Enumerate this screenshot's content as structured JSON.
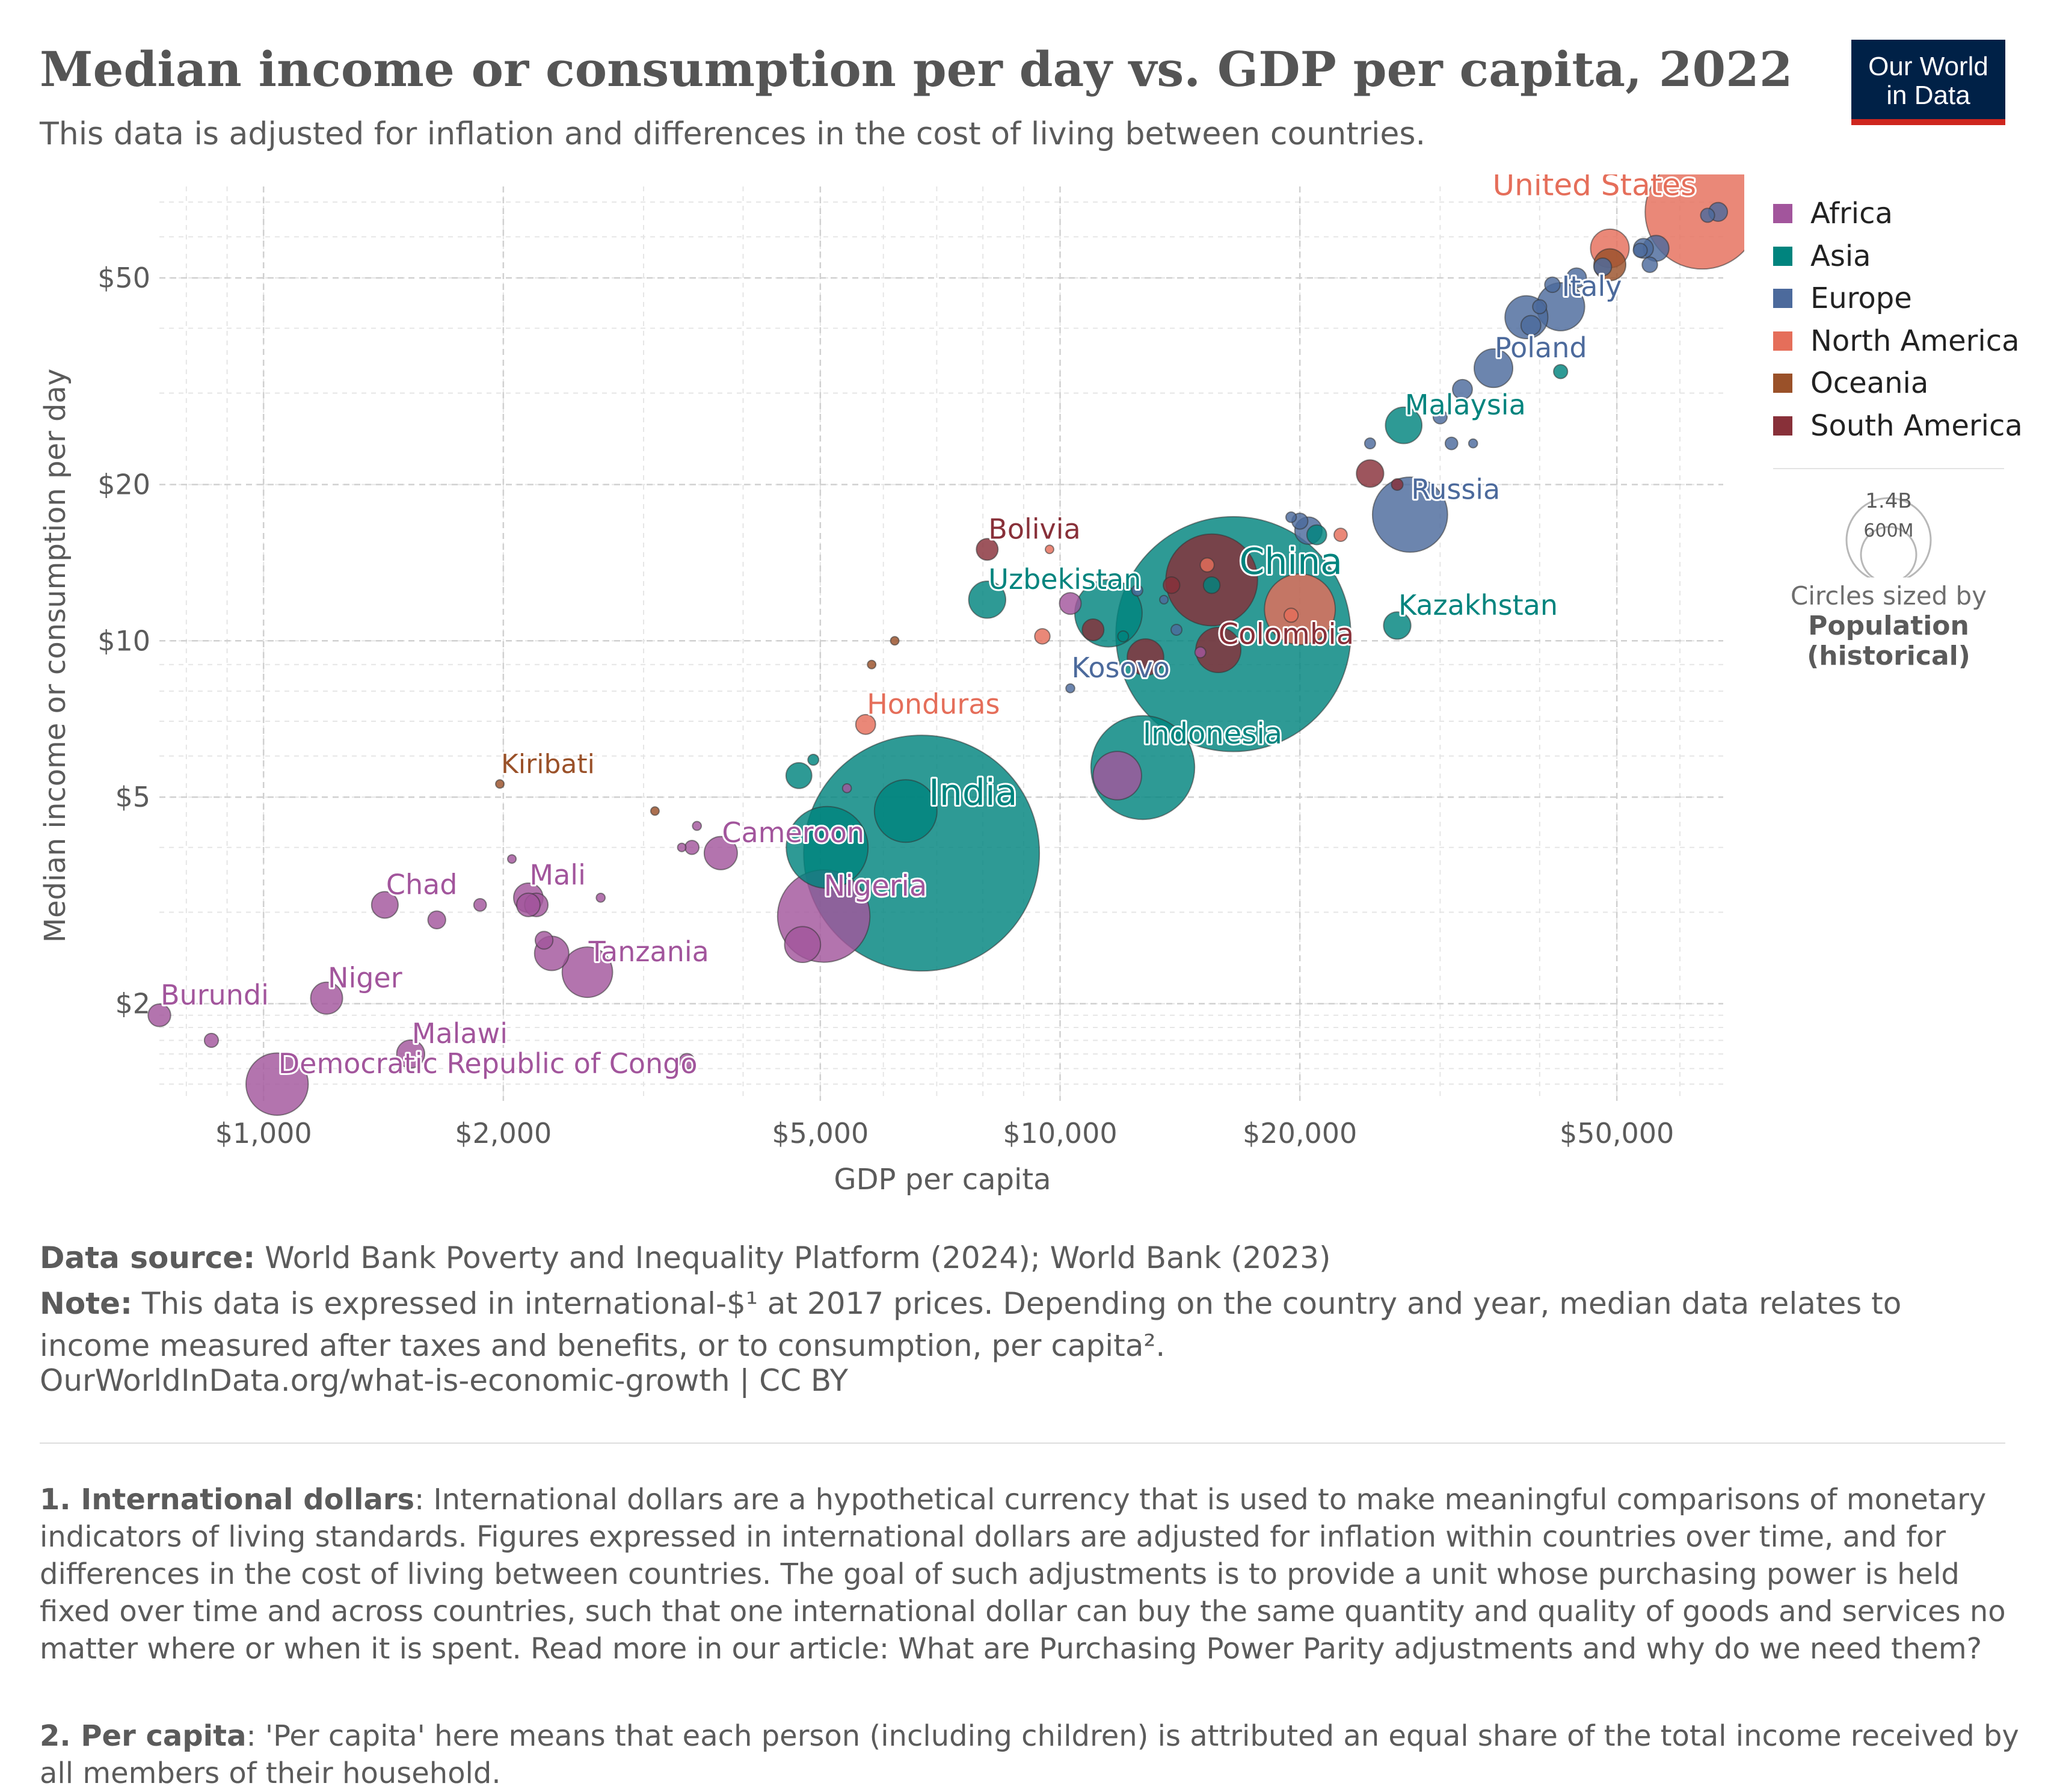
{
  "header": {
    "title": "Median income or consumption per day vs. GDP per capita, 2022",
    "subtitle": "This data is adjusted for inflation and differences in the cost of living between countries.",
    "logo_line1": "Our World",
    "logo_line2": "in Data"
  },
  "legend": {
    "items": [
      {
        "label": "Africa",
        "color": "#a2559c"
      },
      {
        "label": "Asia",
        "color": "#00847e"
      },
      {
        "label": "Europe",
        "color": "#4c6a9c"
      },
      {
        "label": "North America",
        "color": "#e56e5a"
      },
      {
        "label": "Oceania",
        "color": "#9a5129"
      },
      {
        "label": "South America",
        "color": "#883039"
      }
    ],
    "size_max_label": "1.4B",
    "size_mid_label": "600M",
    "size_caption": "Circles sized by",
    "size_caption_bold_1": "Population",
    "size_caption_bold_2": "(historical)"
  },
  "footer": {
    "source_label": "Data source:",
    "source_text": " World Bank Poverty and Inequality Platform (2024); World Bank (2023)",
    "note_label": "Note:",
    "note_text": " This data is expressed in international-$¹ at 2017 prices. Depending on the country and year, median data relates to income measured after taxes and benefits, or to consumption, per capita².",
    "url": "OurWorldInData.org/what-is-economic-growth | CC BY",
    "footnote1_label": "1. International dollars",
    "footnote1_text": ": International dollars are a hypothetical currency that is used to make meaningful comparisons of monetary indicators of living standards. Figures expressed in international dollars are adjusted for inflation within countries over time, and for differences in the cost of living between countries. The goal of such adjustments is to provide a unit whose purchasing power is held fixed over time and across countries, such that one international dollar can buy the same quantity and quality of goods and services no matter where or when it is spent. Read more in our article: What are Purchasing Power Parity adjustments and why do we need them?",
    "footnote2_label": "2. Per capita",
    "footnote2_text": ": 'Per capita' here means that each person (including children) is attributed an equal share of the total income received by all members of their household."
  },
  "chart_data": {
    "type": "scatter",
    "xlabel": "GDP per capita",
    "ylabel": "Median income or consumption per day",
    "x_scale": "log",
    "y_scale": "log",
    "xlim": [
      740,
      68000
    ],
    "ylim": [
      1.3,
      75
    ],
    "x_ticks": [
      {
        "value": 1000,
        "label": "$1,000"
      },
      {
        "value": 2000,
        "label": "$2,000"
      },
      {
        "value": 5000,
        "label": "$5,000"
      },
      {
        "value": 10000,
        "label": "$10,000"
      },
      {
        "value": 20000,
        "label": "$20,000"
      },
      {
        "value": 50000,
        "label": "$50,000"
      }
    ],
    "y_ticks": [
      {
        "value": 2,
        "label": "$2"
      },
      {
        "value": 5,
        "label": "$5"
      },
      {
        "value": 10,
        "label": "$10"
      },
      {
        "value": 20,
        "label": "$20"
      },
      {
        "value": 50,
        "label": "$50"
      }
    ],
    "grid": true,
    "legend_position": "right",
    "points": [
      {
        "label": "United States",
        "region": "North America",
        "x": 64000,
        "y": 67,
        "pop": 333
      },
      {
        "label": "Italy",
        "region": "Europe",
        "x": 42500,
        "y": 44,
        "pop": 59
      },
      {
        "label": "Poland",
        "region": "Europe",
        "x": 35000,
        "y": 33.5,
        "pop": 38
      },
      {
        "label": "Malaysia",
        "region": "Asia",
        "x": 27000,
        "y": 26,
        "pop": 34
      },
      {
        "label": "Russia",
        "region": "Europe",
        "x": 27500,
        "y": 17.5,
        "pop": 144
      },
      {
        "label": "Kazakhstan",
        "region": "Asia",
        "x": 26500,
        "y": 10.7,
        "pop": 19
      },
      {
        "label": "China",
        "region": "Asia",
        "x": 16500,
        "y": 10.3,
        "pop": 1410
      },
      {
        "label": "Colombia",
        "region": "South America",
        "x": 15800,
        "y": 9.6,
        "pop": 52
      },
      {
        "label": "Bolivia",
        "region": "South America",
        "x": 8100,
        "y": 15,
        "pop": 12
      },
      {
        "label": "Uzbekistan",
        "region": "Asia",
        "x": 8100,
        "y": 12,
        "pop": 35
      },
      {
        "label": "Kosovo",
        "region": "Europe",
        "x": 10300,
        "y": 8.1,
        "pop": 2
      },
      {
        "label": "Honduras",
        "region": "North America",
        "x": 5700,
        "y": 6.9,
        "pop": 10
      },
      {
        "label": "Indonesia",
        "region": "Asia",
        "x": 12700,
        "y": 5.7,
        "pop": 275
      },
      {
        "label": "India",
        "region": "Asia",
        "x": 6700,
        "y": 3.9,
        "pop": 1420
      },
      {
        "label": "Kiribati",
        "region": "Oceania",
        "x": 1980,
        "y": 5.3,
        "pop": 0.13
      },
      {
        "label": "Cameroon",
        "region": "Africa",
        "x": 3750,
        "y": 3.9,
        "pop": 28
      },
      {
        "label": "Nigeria",
        "region": "Africa",
        "x": 5050,
        "y": 2.95,
        "pop": 218
      },
      {
        "label": "Mali",
        "region": "Africa",
        "x": 2150,
        "y": 3.2,
        "pop": 22
      },
      {
        "label": "Chad",
        "region": "Africa",
        "x": 1420,
        "y": 3.1,
        "pop": 18
      },
      {
        "label": "Tanzania",
        "region": "Africa",
        "x": 2550,
        "y": 2.3,
        "pop": 65
      },
      {
        "label": "Niger",
        "region": "Africa",
        "x": 1200,
        "y": 2.05,
        "pop": 26
      },
      {
        "label": "Burundi",
        "region": "Africa",
        "x": 740,
        "y": 1.9,
        "pop": 13
      },
      {
        "label": "Malawi",
        "region": "Africa",
        "x": 1530,
        "y": 1.6,
        "pop": 20
      },
      {
        "label": "Democratic Republic of Congo",
        "region": "Africa",
        "x": 1040,
        "y": 1.4,
        "pop": 99
      },
      {
        "region": "Europe",
        "x": 67000,
        "y": 67,
        "pop": 9
      },
      {
        "region": "Europe",
        "x": 65000,
        "y": 66,
        "pop": 5
      },
      {
        "region": "Europe",
        "x": 56000,
        "y": 57,
        "pop": 17
      },
      {
        "region": "Europe",
        "x": 54000,
        "y": 57,
        "pop": 10
      },
      {
        "region": "Europe",
        "x": 55000,
        "y": 53,
        "pop": 6
      },
      {
        "region": "Europe",
        "x": 53500,
        "y": 56.5,
        "pop": 5
      },
      {
        "region": "North America",
        "x": 49000,
        "y": 57,
        "pop": 38
      },
      {
        "region": "Oceania",
        "x": 49000,
        "y": 53,
        "pop": 26
      },
      {
        "region": "Europe",
        "x": 48000,
        "y": 52.5,
        "pop": 8
      },
      {
        "region": "Europe",
        "x": 44500,
        "y": 50,
        "pop": 10
      },
      {
        "region": "Europe",
        "x": 41500,
        "y": 48.5,
        "pop": 6
      },
      {
        "region": "Europe",
        "x": 40000,
        "y": 44,
        "pop": 5
      },
      {
        "region": "Europe",
        "x": 38500,
        "y": 42,
        "pop": 47
      },
      {
        "region": "Europe",
        "x": 39000,
        "y": 40.5,
        "pop": 10
      },
      {
        "region": "Asia",
        "x": 42500,
        "y": 33,
        "pop": 5
      },
      {
        "region": "Europe",
        "x": 32000,
        "y": 30.5,
        "pop": 10
      },
      {
        "region": "Europe",
        "x": 30000,
        "y": 27,
        "pop": 5
      },
      {
        "region": "Europe",
        "x": 31000,
        "y": 24,
        "pop": 4
      },
      {
        "region": "Europe",
        "x": 33000,
        "y": 24,
        "pop": 2
      },
      {
        "region": "Europe",
        "x": 24500,
        "y": 24,
        "pop": 3
      },
      {
        "region": "South America",
        "x": 24500,
        "y": 21,
        "pop": 19
      },
      {
        "region": "South America",
        "x": 26500,
        "y": 20,
        "pop": 3.4
      },
      {
        "region": "Europe",
        "x": 19500,
        "y": 17.3,
        "pop": 2.8
      },
      {
        "region": "Europe",
        "x": 20000,
        "y": 17,
        "pop": 6.5
      },
      {
        "region": "Europe",
        "x": 20500,
        "y": 16.3,
        "pop": 19
      },
      {
        "region": "Asia",
        "x": 21000,
        "y": 16,
        "pop": 10
      },
      {
        "region": "North America",
        "x": 22500,
        "y": 16,
        "pop": 4.4
      },
      {
        "region": "North America",
        "x": 15300,
        "y": 14,
        "pop": 5
      },
      {
        "region": "South America",
        "x": 15500,
        "y": 13.1,
        "pop": 215
      },
      {
        "region": "Asia",
        "x": 15500,
        "y": 12.8,
        "pop": 7
      },
      {
        "region": "South America",
        "x": 13800,
        "y": 12.8,
        "pop": 7
      },
      {
        "region": "Europe",
        "x": 13500,
        "y": 12,
        "pop": 1.8
      },
      {
        "region": "North America",
        "x": 20000,
        "y": 11.5,
        "pop": 128
      },
      {
        "region": "North America",
        "x": 19500,
        "y": 11.2,
        "pop": 5
      },
      {
        "region": "Asia",
        "x": 11500,
        "y": 11.3,
        "pop": 116
      },
      {
        "region": "Africa",
        "x": 10300,
        "y": 11.8,
        "pop": 12
      },
      {
        "region": "Europe",
        "x": 12500,
        "y": 12.5,
        "pop": 3
      },
      {
        "region": "South America",
        "x": 11000,
        "y": 10.5,
        "pop": 12
      },
      {
        "region": "Asia",
        "x": 12000,
        "y": 10.2,
        "pop": 3
      },
      {
        "region": "Europe",
        "x": 14000,
        "y": 10.5,
        "pop": 3
      },
      {
        "region": "North America",
        "x": 9500,
        "y": 10.2,
        "pop": 6
      },
      {
        "region": "South America",
        "x": 12800,
        "y": 9.3,
        "pop": 34
      },
      {
        "region": "Africa",
        "x": 15000,
        "y": 9.5,
        "pop": 3
      },
      {
        "region": "North America",
        "x": 9700,
        "y": 15,
        "pop": 0.5
      },
      {
        "region": "Oceania",
        "x": 6200,
        "y": 10,
        "pop": 0.9
      },
      {
        "region": "Oceania",
        "x": 5800,
        "y": 9,
        "pop": 0.7
      },
      {
        "region": "Africa",
        "x": 11800,
        "y": 5.5,
        "pop": 60
      },
      {
        "region": "Asia",
        "x": 4700,
        "y": 5.5,
        "pop": 17
      },
      {
        "region": "Asia",
        "x": 4900,
        "y": 5.9,
        "pop": 3
      },
      {
        "region": "Africa",
        "x": 5400,
        "y": 5.2,
        "pop": 2
      },
      {
        "region": "Oceania",
        "x": 3100,
        "y": 4.7,
        "pop": 0.3
      },
      {
        "region": "Africa",
        "x": 3500,
        "y": 4.4,
        "pop": 2
      },
      {
        "region": "Africa",
        "x": 3350,
        "y": 4.0,
        "pop": 1
      },
      {
        "region": "Africa",
        "x": 3450,
        "y": 4.0,
        "pop": 5
      },
      {
        "region": "Asia",
        "x": 5100,
        "y": 4.0,
        "pop": 171
      },
      {
        "region": "Asia",
        "x": 6400,
        "y": 4.7,
        "pop": 100
      },
      {
        "region": "Africa",
        "x": 2050,
        "y": 3.8,
        "pop": 1
      },
      {
        "region": "Africa",
        "x": 2650,
        "y": 3.2,
        "pop": 2
      },
      {
        "region": "Africa",
        "x": 2200,
        "y": 3.1,
        "pop": 14
      },
      {
        "region": "Africa",
        "x": 2150,
        "y": 3.1,
        "pop": 14
      },
      {
        "region": "Africa",
        "x": 1650,
        "y": 2.9,
        "pop": 8
      },
      {
        "region": "Africa",
        "x": 1870,
        "y": 3.1,
        "pop": 4
      },
      {
        "region": "Africa",
        "x": 2250,
        "y": 2.65,
        "pop": 8
      },
      {
        "region": "Africa",
        "x": 2300,
        "y": 2.5,
        "pop": 30
      },
      {
        "region": "Africa",
        "x": 4750,
        "y": 2.6,
        "pop": 33
      },
      {
        "region": "Africa",
        "x": 860,
        "y": 1.7,
        "pop": 5
      },
      {
        "region": "Africa",
        "x": 3400,
        "y": 1.55,
        "pop": 6
      }
    ]
  }
}
